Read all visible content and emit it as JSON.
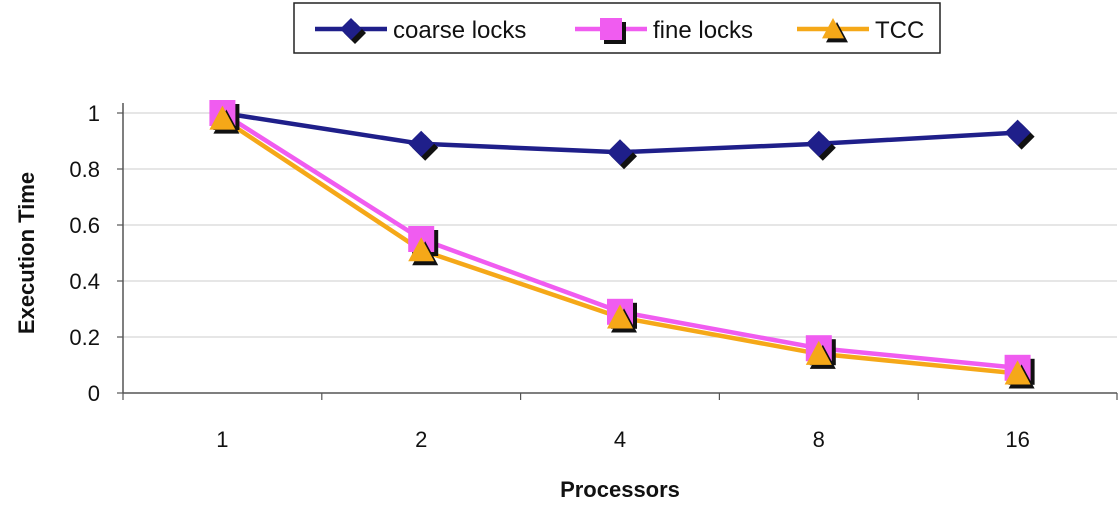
{
  "chart_data": {
    "type": "line",
    "categories": [
      "1",
      "2",
      "4",
      "8",
      "16"
    ],
    "xlabel": "Processors",
    "ylabel": "Execution Time",
    "ylim": [
      0,
      1
    ],
    "yticks": [
      "0",
      "0.2",
      "0.4",
      "0.6",
      "0.8",
      "1"
    ],
    "grid": true,
    "legend_position": "top",
    "series": [
      {
        "name": "coarse locks",
        "values": [
          1.0,
          0.89,
          0.86,
          0.89,
          0.93
        ],
        "color": "#1f1f8a",
        "marker": "diamond"
      },
      {
        "name": "fine locks",
        "values": [
          1.0,
          0.55,
          0.29,
          0.16,
          0.09
        ],
        "color": "#f05cf0",
        "marker": "square"
      },
      {
        "name": "TCC",
        "values": [
          0.98,
          0.51,
          0.27,
          0.14,
          0.07
        ],
        "color": "#f5a818",
        "marker": "triangle"
      }
    ]
  }
}
